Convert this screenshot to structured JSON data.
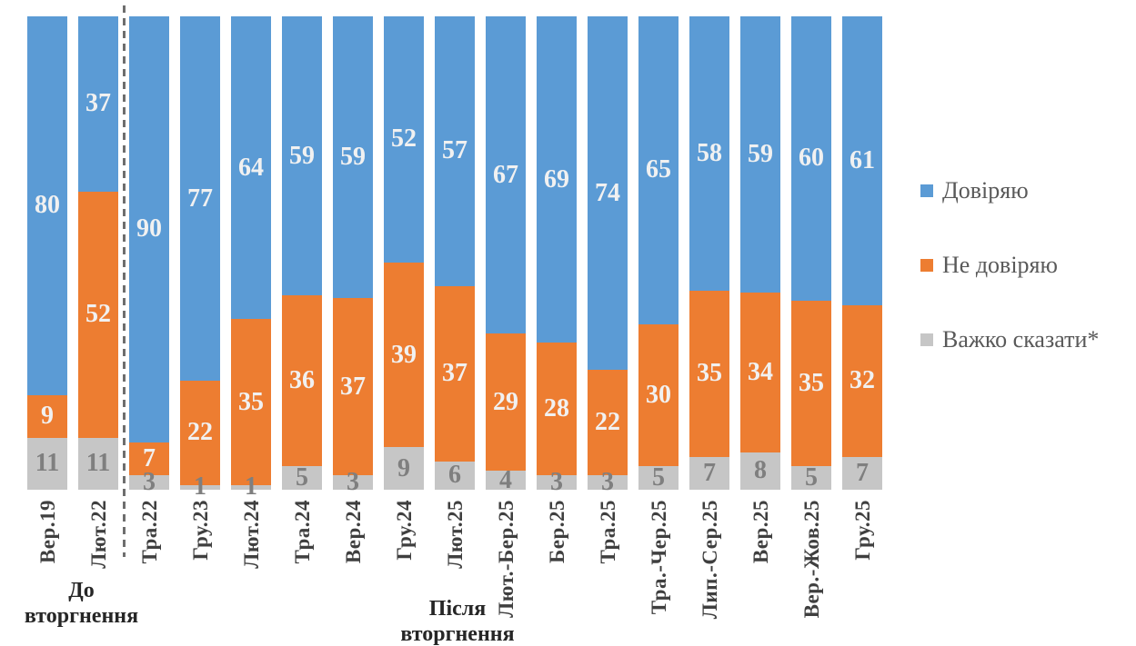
{
  "chart_data": {
    "type": "bar",
    "stacked": true,
    "percent_stacked": true,
    "title": "",
    "xlabel": "",
    "ylabel": "",
    "ylim": [
      0,
      100
    ],
    "grid": false,
    "legend_position": "right",
    "categories": [
      "Вер.19",
      "Лют.22",
      "Тра.22",
      "Гру.23",
      "Лют.24",
      "Тра.24",
      "Вер.24",
      "Гру.24",
      "Лют.25",
      "Лют.-Бер.25",
      "Бер.25",
      "Тра.25",
      "Тра.-Чер.25",
      "Лип.-Сер.25",
      "Вер.25",
      "Вер.-Жов.25",
      "Гру.25"
    ],
    "series": [
      {
        "name": "Довіряю",
        "color": "#5b9bd5",
        "label_color": "#f1f1f1",
        "values": [
          80,
          37,
          90,
          77,
          64,
          59,
          59,
          52,
          57,
          67,
          69,
          74,
          65,
          58,
          59,
          60,
          61
        ]
      },
      {
        "name": "Не довіряю",
        "color": "#ed7d31",
        "label_color": "#f1f1f1",
        "values": [
          9,
          52,
          7,
          22,
          35,
          36,
          37,
          39,
          37,
          29,
          28,
          22,
          30,
          35,
          34,
          35,
          32
        ]
      },
      {
        "name": "Важко сказати*",
        "color": "#c6c6c6",
        "label_color": "#7f7f7f",
        "values": [
          11,
          11,
          3,
          1,
          1,
          5,
          3,
          9,
          6,
          4,
          3,
          3,
          5,
          7,
          8,
          5,
          7
        ]
      }
    ],
    "divider_after_category": "Лют.22",
    "divider_color": "#6e6e6e",
    "annotations": [
      {
        "text": "До вторгнення",
        "position": "below-axis-left"
      },
      {
        "text": "Після вторгнення",
        "position": "below-axis-center"
      }
    ]
  },
  "annotations": {
    "before": {
      "line1": "До",
      "line2": "вторгнення"
    },
    "after": {
      "line1": "Після",
      "line2": "вторгнення"
    }
  },
  "colors": {
    "trust": "#5b9bd5",
    "no_trust": "#ed7d31",
    "hard_to_say": "#c6c6c6",
    "axis_label_text": "#3f3f3f",
    "legend_text": "#595959",
    "gray_value_text": "#7f7f7f",
    "white_value_text": "#f1f1f1",
    "divider": "#6e6e6e"
  }
}
